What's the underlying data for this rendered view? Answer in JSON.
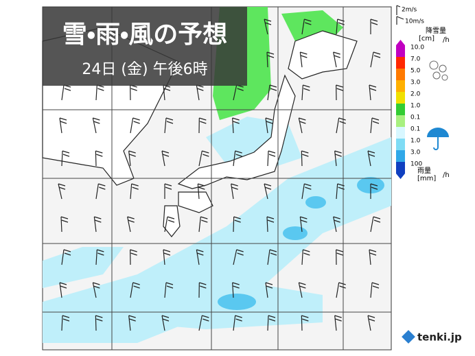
{
  "header": {
    "title": "雪・雨・風の予想",
    "subtitle": "24日 (金) 午後6時"
  },
  "legend": {
    "wind": [
      "2m/s",
      "10m/s"
    ],
    "snow": {
      "label": "降雪量",
      "unit": "[cm]",
      "per": "/h",
      "levels": [
        "10.0",
        "7.0",
        "5.0",
        "3.0",
        "2.0",
        "1.0",
        "0.1"
      ]
    },
    "rain": {
      "label": "雨量",
      "unit": "[mm]",
      "per": "/h",
      "levels": [
        "0.1",
        "1.0",
        "3.0",
        "100"
      ]
    }
  },
  "logo": "tenki.jp"
}
